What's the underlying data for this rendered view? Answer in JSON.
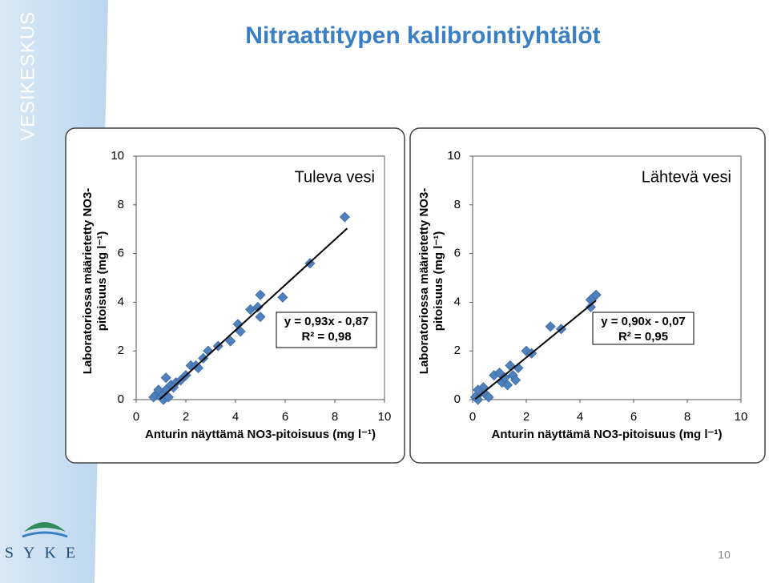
{
  "title": "Nitraattitypen kalibrointiyhtälöt",
  "side_label": "VESIKESKUS",
  "logo_text": "SYKE",
  "page_number": "10",
  "chart_data": [
    {
      "type": "scatter",
      "title": "Tuleva vesi",
      "xlabel": "Anturin näyttämä NO3-pitoisuus (mg l⁻¹)",
      "ylabel": [
        "Laboratoriossa määrietetty NO3-",
        "pitoisuus (mg l⁻¹)"
      ],
      "annotation": [
        "y = 0,93x - 0,87",
        "R² = 0,98"
      ],
      "x": [
        0.7,
        0.8,
        0.9,
        1,
        1.1,
        1.2,
        0.9,
        1.2,
        1.4,
        1.6,
        1.8,
        2,
        2.2,
        2.4,
        2.5,
        2.7,
        2.9,
        3.3,
        3.8,
        4.1,
        4.2,
        4.6,
        4.9,
        5,
        5,
        5.9,
        7,
        8.4,
        1.1,
        1.3,
        1.5
      ],
      "values": [
        0.1,
        0.2,
        0.3,
        0.1,
        0.2,
        0.4,
        0.4,
        0.9,
        0.6,
        0.7,
        0.8,
        1,
        1.4,
        1.4,
        1.3,
        1.7,
        2,
        2.2,
        2.4,
        3.1,
        2.8,
        3.7,
        3.8,
        3.4,
        4.3,
        4.2,
        5.6,
        7.5,
        0,
        0.1,
        0.5
      ],
      "color": "#4f81bd",
      "trendline": {
        "slope": 0.93,
        "intercept": -0.87,
        "x": [
          0.95,
          8.5
        ]
      },
      "xlim": [
        0,
        10
      ],
      "ylim": [
        0,
        10
      ],
      "xticks": [
        0,
        2,
        4,
        6,
        8,
        10
      ],
      "yticks": [
        0,
        2,
        4,
        6,
        8,
        10
      ]
    },
    {
      "type": "scatter",
      "title": "Lähtevä vesi",
      "xlabel": "Anturin näyttämä NO3-pitoisuus (mg l⁻¹)",
      "ylabel": [
        "Laboratoriossa määrietetty NO3-",
        "pitoisuus (mg l⁻¹)"
      ],
      "annotation": [
        "y = 0,90x - 0,07",
        "R² = 0,95"
      ],
      "x": [
        0.1,
        0.2,
        0.3,
        0.4,
        0.5,
        0.6,
        0.2,
        0.8,
        1,
        1.1,
        1.2,
        1.3,
        1.4,
        1.5,
        1.6,
        1.7,
        2,
        2.2,
        2.9,
        3.3,
        4.4,
        4.5,
        4.6,
        4.4
      ],
      "values": [
        0.1,
        0,
        0.3,
        0.5,
        0.2,
        0.1,
        0.4,
        1,
        1.1,
        0.7,
        0.9,
        0.6,
        1.4,
        1,
        0.8,
        1.3,
        2,
        1.9,
        3,
        2.9,
        4.1,
        4.2,
        4.3,
        3.8
      ],
      "color": "#4f81bd",
      "trendline": {
        "slope": 0.9,
        "intercept": -0.07,
        "x": [
          0.1,
          4.6
        ]
      },
      "xlim": [
        0,
        10
      ],
      "ylim": [
        0,
        10
      ],
      "xticks": [
        0,
        2,
        4,
        6,
        8,
        10
      ],
      "yticks": [
        0,
        2,
        4,
        6,
        8,
        10
      ]
    }
  ]
}
